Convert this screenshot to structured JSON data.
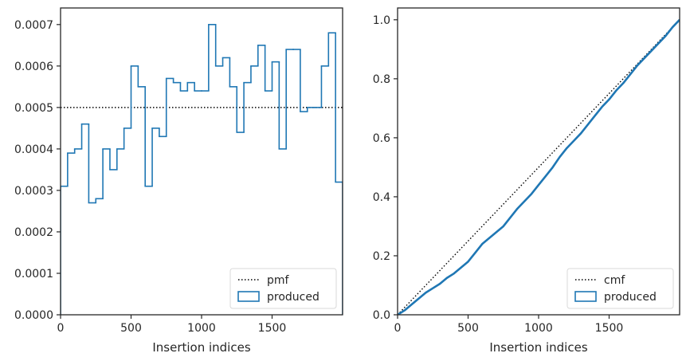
{
  "chart_data": [
    {
      "type": "histogram-step",
      "xlabel": "Insertion indices",
      "ylabel": "",
      "xlim": [
        0,
        2000
      ],
      "ylim": [
        0,
        0.00074
      ],
      "xticks": [
        0,
        500,
        1000,
        1500
      ],
      "xtick_labels": [
        "0",
        "500",
        "1000",
        "1500"
      ],
      "yticks": [
        0,
        0.0001,
        0.0002,
        0.0003,
        0.0004,
        0.0005,
        0.0006,
        0.0007
      ],
      "ytick_labels": [
        "0.0000",
        "0.0001",
        "0.0002",
        "0.0003",
        "0.0004",
        "0.0005",
        "0.0006",
        "0.0007"
      ],
      "legend_position": "lower right",
      "reference": {
        "name": "pmf",
        "value": 0.0005,
        "style": "dotted",
        "color": "#000000"
      },
      "series": [
        {
          "name": "produced",
          "color": "#1f77b4",
          "bin_edges": [
            0,
            50,
            100,
            150,
            200,
            250,
            300,
            350,
            400,
            450,
            500,
            550,
            600,
            650,
            700,
            750,
            800,
            850,
            900,
            950,
            1000,
            1050,
            1100,
            1150,
            1200,
            1250,
            1300,
            1350,
            1400,
            1450,
            1500,
            1550,
            1600,
            1650,
            1700,
            1750,
            1800,
            1850,
            1900,
            1950,
            2000
          ],
          "values": [
            0.00031,
            0.00039,
            0.0004,
            0.00046,
            0.00027,
            0.00028,
            0.0004,
            0.00035,
            0.0004,
            0.00045,
            0.0006,
            0.00055,
            0.00031,
            0.00045,
            0.00043,
            0.00057,
            0.00056,
            0.00054,
            0.00056,
            0.00054,
            0.00054,
            0.0007,
            0.0006,
            0.00062,
            0.00055,
            0.00044,
            0.00056,
            0.0006,
            0.00065,
            0.00054,
            0.00061,
            0.0004,
            0.00064,
            0.00064,
            0.00049,
            0.0005,
            0.0005,
            0.0006,
            0.00068,
            0.00032
          ]
        }
      ]
    },
    {
      "type": "line",
      "xlabel": "Insertion indices",
      "ylabel": "",
      "xlim": [
        0,
        2000
      ],
      "ylim": [
        0,
        1.04
      ],
      "xticks": [
        0,
        500,
        1000,
        1500
      ],
      "xtick_labels": [
        "0",
        "500",
        "1000",
        "1500"
      ],
      "yticks": [
        0,
        0.2,
        0.4,
        0.6,
        0.8,
        1.0
      ],
      "ytick_labels": [
        "0.0",
        "0.2",
        "0.4",
        "0.6",
        "0.8",
        "1.0"
      ],
      "legend_position": "lower right",
      "reference": {
        "name": "cmf",
        "x": [
          0,
          2000
        ],
        "y": [
          0,
          1.0
        ],
        "style": "dotted",
        "color": "#000000"
      },
      "series": [
        {
          "name": "produced",
          "color": "#1f77b4",
          "x": [
            0,
            50,
            100,
            150,
            200,
            250,
            300,
            350,
            400,
            450,
            500,
            550,
            600,
            650,
            700,
            750,
            800,
            850,
            900,
            950,
            1000,
            1050,
            1100,
            1150,
            1200,
            1250,
            1300,
            1350,
            1400,
            1450,
            1500,
            1550,
            1600,
            1650,
            1700,
            1750,
            1800,
            1850,
            1900,
            1950,
            2000
          ],
          "y": [
            0,
            0.015,
            0.035,
            0.055,
            0.075,
            0.09,
            0.105,
            0.125,
            0.14,
            0.16,
            0.18,
            0.21,
            0.24,
            0.26,
            0.28,
            0.3,
            0.33,
            0.36,
            0.385,
            0.41,
            0.44,
            0.47,
            0.5,
            0.535,
            0.565,
            0.59,
            0.615,
            0.645,
            0.675,
            0.705,
            0.73,
            0.76,
            0.785,
            0.815,
            0.845,
            0.87,
            0.895,
            0.92,
            0.945,
            0.975,
            1.0
          ]
        }
      ]
    }
  ]
}
